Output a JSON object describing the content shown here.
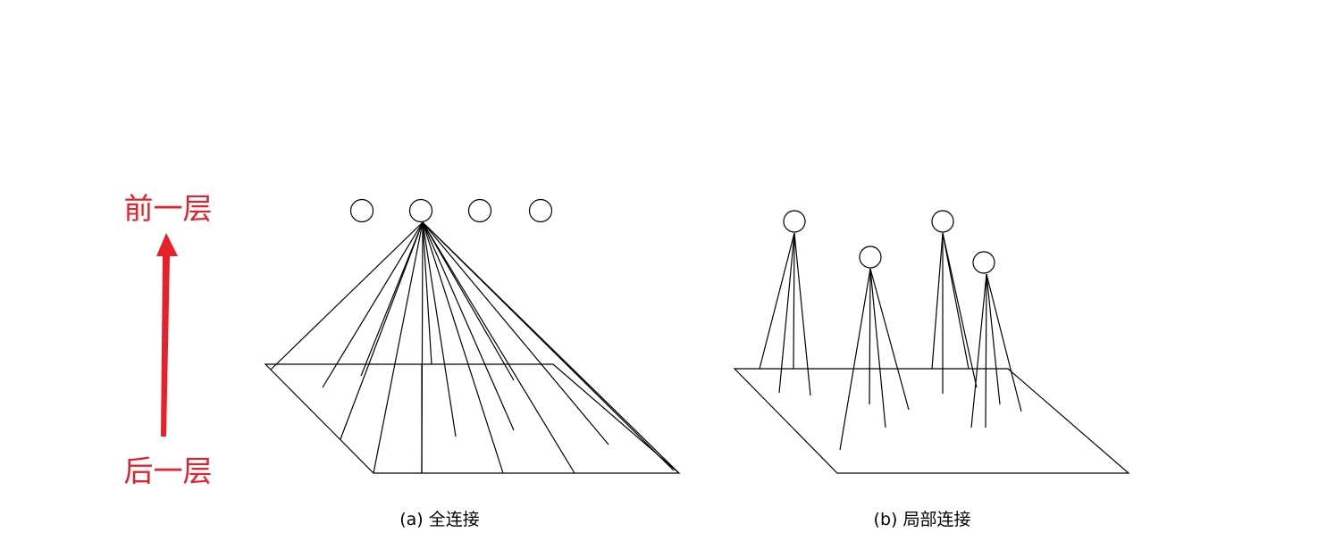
{
  "labels": {
    "prev_layer": "前一层",
    "next_layer": "后一层"
  },
  "captions": {
    "full": "(a) 全连接",
    "local": "(b) 局部连接"
  },
  "colors": {
    "arrow": "#e8202a",
    "lines": "#000000"
  }
}
